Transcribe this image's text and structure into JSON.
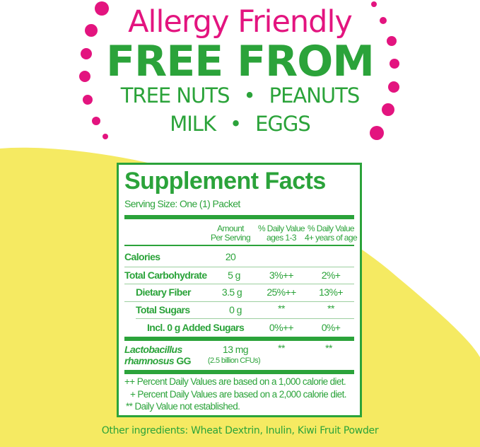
{
  "colors": {
    "pink": "#e3147f",
    "green": "#2ba33a",
    "yellow": "#f5ea62"
  },
  "header": {
    "line1": "Allergy Friendly",
    "line2": "FREE FROM",
    "line3a": "TREE NUTS",
    "line3b": "PEANUTS",
    "line4a": "MILK",
    "line4b": "EGGS",
    "bullet": "•"
  },
  "facts": {
    "title": "Supplement Facts",
    "serving": "Serving Size: One (1) Packet",
    "col_amount": [
      "Amount",
      "Per Serving"
    ],
    "col_dv1": [
      "% Daily Value",
      "ages 1-3"
    ],
    "col_dv2": [
      "% Daily Value",
      "4+ years of age"
    ],
    "rows": [
      {
        "label": "Calories",
        "amount": "20",
        "dv1": "",
        "dv2": ""
      },
      {
        "label": "Total Carbohydrate",
        "amount": "5 g",
        "dv1": "3%++",
        "dv2": "2%+"
      },
      {
        "label": "Dietary Fiber",
        "amount": "3.5 g",
        "dv1": "25%++",
        "dv2": "13%+"
      },
      {
        "label": "Total Sugars",
        "amount": "0 g",
        "dv1": "**",
        "dv2": "**"
      },
      {
        "label": "Incl. 0 g Added Sugars",
        "amount": "",
        "dv1": "0%++",
        "dv2": "0%+"
      }
    ],
    "probiotic": {
      "label1": "Lactobacillus",
      "label2a": "rhamnosus",
      "label2b": " GG",
      "amount": "13 mg",
      "cfu": "(2.5 billion CFUs)",
      "dv1": "**",
      "dv2": "**"
    },
    "footnotes": [
      "++ Percent Daily Values are based on a 1,000 calorie diet.",
      "+ Percent Daily Values are based on a 2,000 calorie diet.",
      "** Daily Value not established."
    ]
  },
  "ingredients": "Other ingredients: Wheat Dextrin, Inulin, Kiwi Fruit Powder"
}
